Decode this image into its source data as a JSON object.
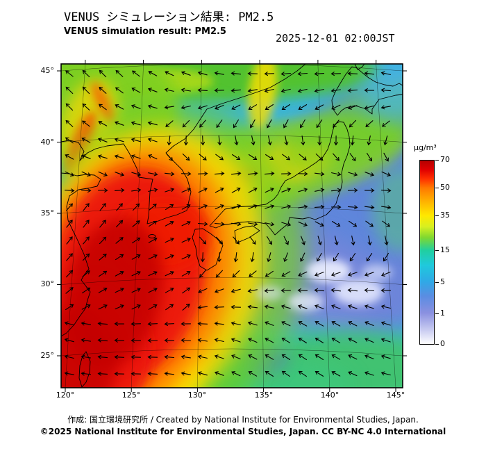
{
  "header": {
    "title_ja": "VENUS シミュレーション結果: PM2.5",
    "title_en": "VENUS simulation result: PM2.5",
    "timestamp": "2025-12-01 02:00JST"
  },
  "axes": {
    "lat_ticks": [
      "45°",
      "40°",
      "35°",
      "30°",
      "25°"
    ],
    "lon_ticks": [
      "120°",
      "125°",
      "130°",
      "135°",
      "140°",
      "145°"
    ]
  },
  "colorbar": {
    "unit": "µg/m³",
    "ticks": [
      "70",
      "50",
      "35",
      "15",
      "5",
      "1",
      "0"
    ],
    "scale_colors_top_to_bottom": [
      "#b50000",
      "#ff3000",
      "#ff7a00",
      "#ffe800",
      "#7fd830",
      "#20cfa0",
      "#2fa9e6",
      "#5b8de2",
      "#8a90e0",
      "#c6c9f0",
      "#ffffff"
    ]
  },
  "footer": {
    "credit": "作成: 国立環境研究所 / Created by National Institute for Environmental Studies, Japan.",
    "license": "©2025 National Institute for Environmental Studies, Japan. CC BY-NC 4.0 International"
  }
}
